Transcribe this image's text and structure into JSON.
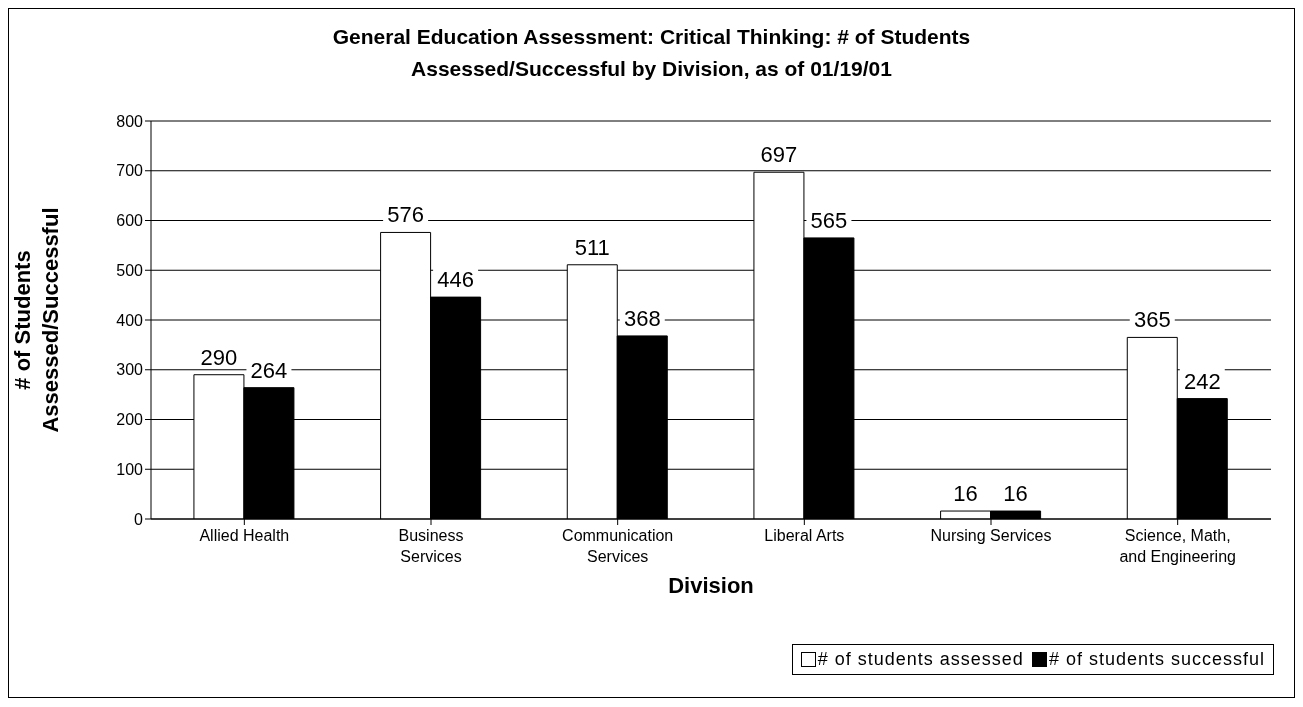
{
  "chart_data": {
    "type": "bar",
    "title": "General Education Assessment: Critical Thinking: # of Students Assessed/Successful by Division, as of 01/19/01",
    "xlabel": "Division",
    "ylabel": "# of Students Assessed/Successful",
    "categories": [
      "Allied Health",
      "Business Services",
      "Communication Services",
      "Liberal Arts",
      "Nursing Services",
      "Science, Math, and Engineering"
    ],
    "series": [
      {
        "name": "# of students assessed",
        "color": "#ffffff",
        "values": [
          290,
          576,
          511,
          697,
          16,
          365
        ]
      },
      {
        "name": "# of students successful",
        "color": "#000000",
        "values": [
          264,
          446,
          368,
          565,
          16,
          242
        ]
      }
    ],
    "ylim": [
      0,
      800
    ],
    "yticks": [
      0,
      100,
      200,
      300,
      400,
      500,
      600,
      700,
      800
    ],
    "grid": "y",
    "legend": "bottom right",
    "data_labels": true
  }
}
